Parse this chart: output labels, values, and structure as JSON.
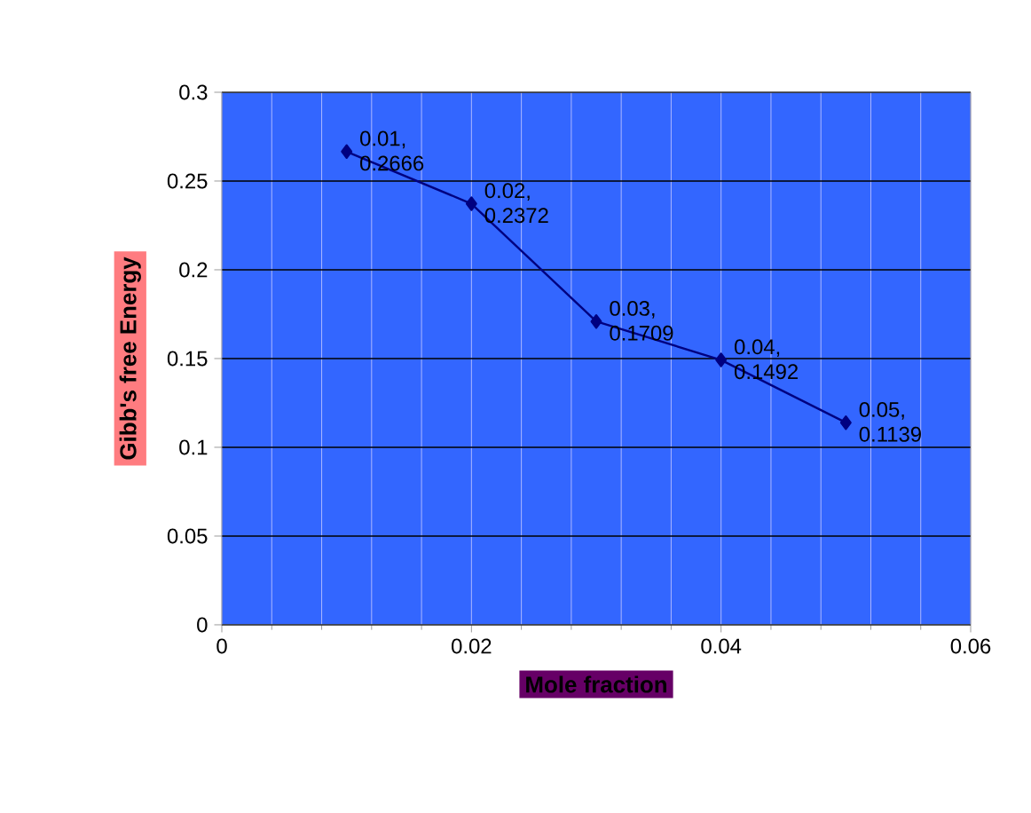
{
  "chart_data": {
    "type": "line",
    "xlabel": "Mole fraction",
    "ylabel": "Gibb's free Energy",
    "x": [
      0.01,
      0.02,
      0.03,
      0.04,
      0.05
    ],
    "series": [
      {
        "color": "#000080",
        "values": [
          0.2666,
          0.2372,
          0.1709,
          0.1492,
          0.1139
        ],
        "value_labels": [
          "0.01, 0.2666",
          "0.02, 0.2372",
          "0.03, 0.1709",
          "0.04, 0.1492",
          "0.05, 0.1139"
        ]
      }
    ],
    "xlim": [
      0,
      0.06
    ],
    "xticks": [
      0,
      0.02,
      0.04,
      0.06
    ],
    "ylim": [
      0,
      0.3
    ],
    "yticks": [
      0,
      0.05,
      0.1,
      0.15,
      0.2,
      0.25,
      0.3
    ],
    "grid": true,
    "marker": "diamond",
    "line_style": "solid"
  }
}
